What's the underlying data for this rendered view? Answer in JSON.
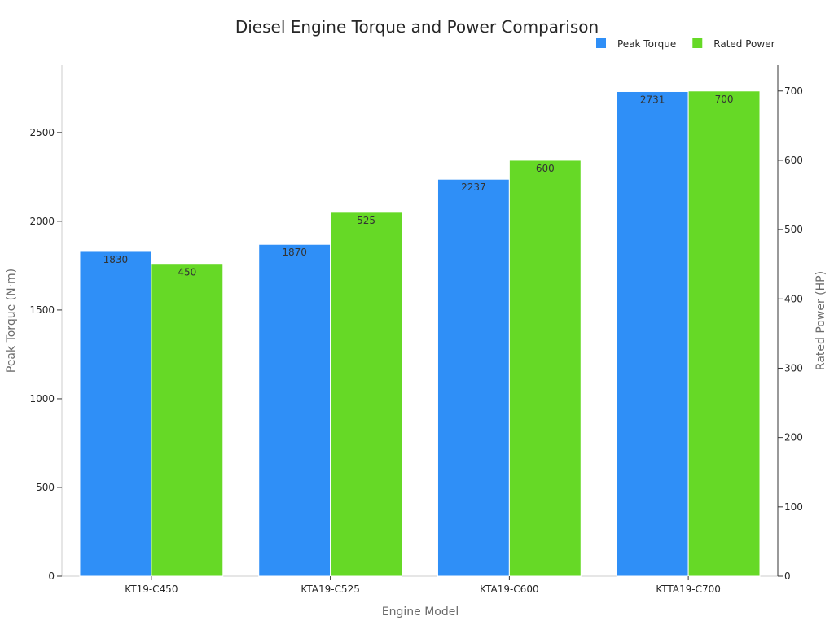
{
  "chart_data": {
    "type": "bar",
    "title": "Diesel Engine Torque and Power Comparison",
    "xlabel": "Engine Model",
    "ylabel": "Peak Torque (N·m)",
    "y2label": "Rated Power (HP)",
    "categories": [
      "KT19-C450",
      "KTA19-C525",
      "KTA19-C600",
      "KTTA19-C700"
    ],
    "series": [
      {
        "name": "Peak Torque",
        "axis": "left",
        "color": "#2f8ff7",
        "values": [
          1830,
          1870,
          2237,
          2731
        ]
      },
      {
        "name": "Rated Power",
        "axis": "right",
        "color": "#66d926",
        "values": [
          450,
          525,
          600,
          700
        ]
      }
    ],
    "ylim": [
      0,
      2880
    ],
    "y2lim": [
      0,
      737.3
    ],
    "yticks": [
      0,
      500,
      1000,
      1500,
      2000,
      2500
    ],
    "y2ticks": [
      0,
      100,
      200,
      300,
      400,
      500,
      600,
      700
    ],
    "legend_position": "top-right",
    "grid": false
  }
}
